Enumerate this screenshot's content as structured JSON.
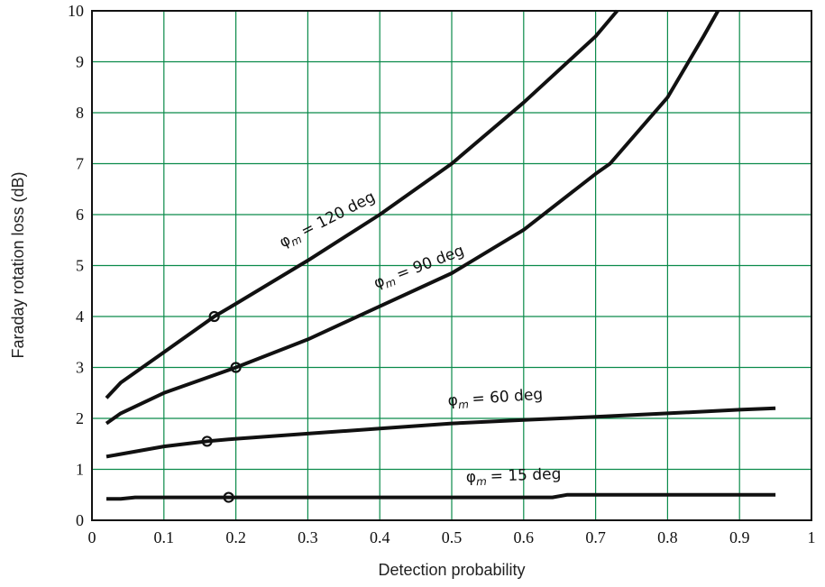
{
  "chart_data": {
    "type": "line",
    "title": "",
    "xlabel": "Detection probability",
    "ylabel": "Faraday rotation loss (dB)",
    "xlim": [
      0,
      1
    ],
    "ylim": [
      0,
      10
    ],
    "grid": true,
    "xticks": [
      "0",
      "0.1",
      "0.2",
      "0.3",
      "0.4",
      "0.5",
      "0.6",
      "0.7",
      "0.8",
      "0.9",
      "1"
    ],
    "yticks": [
      "0",
      "1",
      "2",
      "3",
      "4",
      "5",
      "6",
      "7",
      "8",
      "9",
      "10"
    ],
    "series": [
      {
        "name": "120",
        "label_sym": "φ",
        "label_sub": "m",
        "label_text": "= 120 deg",
        "x": [
          0.02,
          0.04,
          0.1,
          0.17,
          0.2,
          0.3,
          0.4,
          0.5,
          0.6,
          0.7,
          0.73
        ],
        "y": [
          2.4,
          2.7,
          3.3,
          4.0,
          4.25,
          5.1,
          6.0,
          7.0,
          8.2,
          9.5,
          10
        ],
        "marker": [
          0.17,
          4.0
        ]
      },
      {
        "name": "90",
        "label_sym": "φ",
        "label_sub": "m",
        "label_text": "= 90 deg",
        "x": [
          0.02,
          0.04,
          0.1,
          0.2,
          0.3,
          0.4,
          0.5,
          0.6,
          0.7,
          0.72,
          0.8,
          0.85,
          0.87
        ],
        "y": [
          1.9,
          2.1,
          2.5,
          3.0,
          3.55,
          4.2,
          4.85,
          5.7,
          6.8,
          7.0,
          8.3,
          9.5,
          10
        ],
        "marker": [
          0.2,
          3.0
        ]
      },
      {
        "name": "60",
        "label_sym": "φ",
        "label_sub": "m",
        "label_text": "= 60 deg",
        "x": [
          0.02,
          0.1,
          0.16,
          0.2,
          0.3,
          0.4,
          0.5,
          0.6,
          0.7,
          0.8,
          0.9,
          0.95
        ],
        "y": [
          1.25,
          1.45,
          1.55,
          1.6,
          1.7,
          1.8,
          1.9,
          1.97,
          2.03,
          2.1,
          2.17,
          2.2
        ],
        "marker": [
          0.16,
          1.55
        ]
      },
      {
        "name": "15",
        "label_sym": "φ",
        "label_sub": "m",
        "label_text": "= 15 deg",
        "x": [
          0.02,
          0.04,
          0.06,
          0.64,
          0.66,
          0.95
        ],
        "y": [
          0.42,
          0.42,
          0.45,
          0.45,
          0.5,
          0.5
        ],
        "marker": [
          0.19,
          0.45
        ]
      }
    ]
  }
}
